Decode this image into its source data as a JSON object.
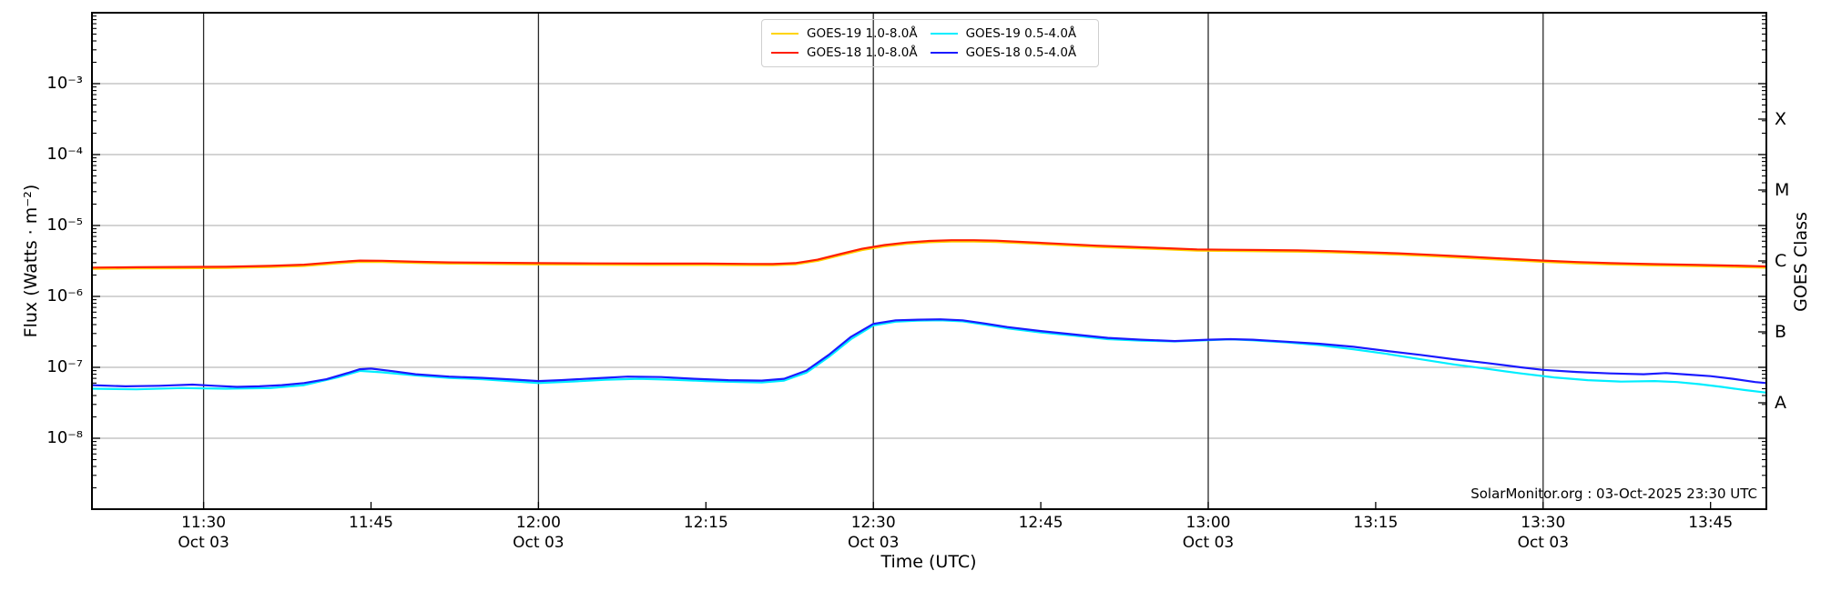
{
  "figure": {
    "xlabel": "Time (UTC)",
    "ylabel": "Flux (Watts · m⁻²)",
    "right_axis_label": "GOES Class",
    "source_text": "SolarMonitor.org : 03-Oct-2025 23:30 UTC"
  },
  "chart_data": {
    "type": "line",
    "title": "",
    "xlabel": "Time (UTC)",
    "ylabel": "Flux (Watts · m⁻²)",
    "x_unit": "minutes_of_day_UTC",
    "xlim": [
      680,
      830
    ],
    "ylim": [
      1e-09,
      0.01
    ],
    "ylim_exp": [
      -9,
      -2
    ],
    "grid": {
      "horizontal": "decades",
      "vertical": "30-min marks"
    },
    "legend_position": "top-center",
    "x_ticks": [
      {
        "t": 690,
        "label": "11:30",
        "date": "Oct 03",
        "grid": true
      },
      {
        "t": 705,
        "label": "11:45",
        "date": "",
        "grid": false
      },
      {
        "t": 720,
        "label": "12:00",
        "date": "Oct 03",
        "grid": true
      },
      {
        "t": 735,
        "label": "12:15",
        "date": "",
        "grid": false
      },
      {
        "t": 750,
        "label": "12:30",
        "date": "Oct 03",
        "grid": true
      },
      {
        "t": 765,
        "label": "12:45",
        "date": "",
        "grid": false
      },
      {
        "t": 780,
        "label": "13:00",
        "date": "Oct 03",
        "grid": true
      },
      {
        "t": 795,
        "label": "13:15",
        "date": "",
        "grid": false
      },
      {
        "t": 810,
        "label": "13:30",
        "date": "Oct 03",
        "grid": true
      },
      {
        "t": 825,
        "label": "13:45",
        "date": "",
        "grid": false
      }
    ],
    "y_ticks": [
      {
        "exp": -3,
        "label": "10⁻³"
      },
      {
        "exp": -4,
        "label": "10⁻⁴"
      },
      {
        "exp": -5,
        "label": "10⁻⁵"
      },
      {
        "exp": -6,
        "label": "10⁻⁶"
      },
      {
        "exp": -7,
        "label": "10⁻⁷"
      },
      {
        "exp": -8,
        "label": "10⁻⁸"
      }
    ],
    "class_ticks": [
      {
        "label": "X",
        "exp": -3.5
      },
      {
        "label": "M",
        "exp": -4.5
      },
      {
        "label": "C",
        "exp": -5.5
      },
      {
        "label": "B",
        "exp": -6.5
      },
      {
        "label": "A",
        "exp": -7.5
      }
    ],
    "legend": [
      {
        "id": "goes19-long",
        "name": "GOES-19 1.0-8.0Å",
        "color": "#ffd400"
      },
      {
        "id": "goes18-long",
        "name": "GOES-18 1.0-8.0Å",
        "color": "#ff1e00"
      },
      {
        "id": "goes19-short",
        "name": "GOES-19 0.5-4.0Å",
        "color": "#00eeff"
      },
      {
        "id": "goes18-short",
        "name": "GOES-18 0.5-4.0Å",
        "color": "#1a1aff"
      }
    ],
    "series": [
      {
        "id": "goes19-long",
        "name": "GOES-19 1.0-8.0Å",
        "color": "#ffd400",
        "points": [
          [
            680,
            2.45e-06
          ],
          [
            684,
            2.48e-06
          ],
          [
            688,
            2.5e-06
          ],
          [
            692,
            2.52e-06
          ],
          [
            696,
            2.6e-06
          ],
          [
            699,
            2.69e-06
          ],
          [
            702,
            2.93e-06
          ],
          [
            704,
            3.07e-06
          ],
          [
            706,
            3.05e-06
          ],
          [
            709,
            2.96e-06
          ],
          [
            712,
            2.9e-06
          ],
          [
            716,
            2.86e-06
          ],
          [
            720,
            2.83e-06
          ],
          [
            725,
            2.8e-06
          ],
          [
            730,
            2.78e-06
          ],
          [
            735,
            2.78e-06
          ],
          [
            739,
            2.76e-06
          ],
          [
            741,
            2.75e-06
          ],
          [
            743,
            2.83e-06
          ],
          [
            745,
            3.17e-06
          ],
          [
            747,
            3.79e-06
          ],
          [
            749,
            4.51e-06
          ],
          [
            751,
            5.09e-06
          ],
          [
            753,
            5.52e-06
          ],
          [
            755,
            5.81e-06
          ],
          [
            757,
            5.95e-06
          ],
          [
            759,
            5.95e-06
          ],
          [
            761,
            5.86e-06
          ],
          [
            764,
            5.57e-06
          ],
          [
            767,
            5.28e-06
          ],
          [
            770,
            4.99e-06
          ],
          [
            773,
            4.8e-06
          ],
          [
            776,
            4.61e-06
          ],
          [
            779,
            4.42e-06
          ],
          [
            782,
            4.37e-06
          ],
          [
            785,
            4.32e-06
          ],
          [
            788,
            4.27e-06
          ],
          [
            791,
            4.18e-06
          ],
          [
            794,
            4.03e-06
          ],
          [
            797,
            3.89e-06
          ],
          [
            800,
            3.7e-06
          ],
          [
            803,
            3.5e-06
          ],
          [
            806,
            3.31e-06
          ],
          [
            810,
            3.07e-06
          ],
          [
            813,
            2.93e-06
          ],
          [
            816,
            2.83e-06
          ],
          [
            820,
            2.74e-06
          ],
          [
            824,
            2.67e-06
          ],
          [
            827,
            2.61e-06
          ],
          [
            830,
            2.54e-06
          ]
        ]
      },
      {
        "id": "goes18-long",
        "name": "GOES-18 1.0-8.0Å",
        "color": "#ff1e00",
        "points": [
          [
            680,
            2.55e-06
          ],
          [
            684,
            2.58e-06
          ],
          [
            688,
            2.6e-06
          ],
          [
            692,
            2.62e-06
          ],
          [
            696,
            2.7e-06
          ],
          [
            699,
            2.8e-06
          ],
          [
            702,
            3.05e-06
          ],
          [
            704,
            3.2e-06
          ],
          [
            706,
            3.18e-06
          ],
          [
            709,
            3.08e-06
          ],
          [
            712,
            3.02e-06
          ],
          [
            716,
            2.98e-06
          ],
          [
            720,
            2.95e-06
          ],
          [
            725,
            2.92e-06
          ],
          [
            730,
            2.9e-06
          ],
          [
            735,
            2.9e-06
          ],
          [
            739,
            2.87e-06
          ],
          [
            741,
            2.86e-06
          ],
          [
            743,
            2.95e-06
          ],
          [
            745,
            3.3e-06
          ],
          [
            747,
            3.95e-06
          ],
          [
            749,
            4.7e-06
          ],
          [
            751,
            5.3e-06
          ],
          [
            753,
            5.75e-06
          ],
          [
            755,
            6.05e-06
          ],
          [
            757,
            6.2e-06
          ],
          [
            759,
            6.2e-06
          ],
          [
            761,
            6.1e-06
          ],
          [
            764,
            5.8e-06
          ],
          [
            767,
            5.5e-06
          ],
          [
            770,
            5.2e-06
          ],
          [
            773,
            5e-06
          ],
          [
            776,
            4.8e-06
          ],
          [
            779,
            4.6e-06
          ],
          [
            782,
            4.55e-06
          ],
          [
            785,
            4.5e-06
          ],
          [
            788,
            4.45e-06
          ],
          [
            791,
            4.35e-06
          ],
          [
            794,
            4.2e-06
          ],
          [
            797,
            4.05e-06
          ],
          [
            800,
            3.85e-06
          ],
          [
            803,
            3.65e-06
          ],
          [
            806,
            3.45e-06
          ],
          [
            810,
            3.2e-06
          ],
          [
            813,
            3.05e-06
          ],
          [
            816,
            2.95e-06
          ],
          [
            820,
            2.85e-06
          ],
          [
            824,
            2.78e-06
          ],
          [
            827,
            2.72e-06
          ],
          [
            830,
            2.65e-06
          ]
        ]
      },
      {
        "id": "goes19-short",
        "name": "GOES-19 0.5-4.0Å",
        "color": "#00eeff",
        "points": [
          [
            680,
            5e-08
          ],
          [
            684,
            4.9e-08
          ],
          [
            688,
            5.1e-08
          ],
          [
            692,
            5e-08
          ],
          [
            696,
            5.1e-08
          ],
          [
            699,
            5.6e-08
          ],
          [
            702,
            7.2e-08
          ],
          [
            704,
            8.9e-08
          ],
          [
            706,
            8.5e-08
          ],
          [
            709,
            7.7e-08
          ],
          [
            712,
            7.1e-08
          ],
          [
            715,
            6.8e-08
          ],
          [
            718,
            6.3e-08
          ],
          [
            720,
            6e-08
          ],
          [
            723,
            6.3e-08
          ],
          [
            726,
            6.7e-08
          ],
          [
            729,
            6.9e-08
          ],
          [
            732,
            6.7e-08
          ],
          [
            735,
            6.4e-08
          ],
          [
            738,
            6.2e-08
          ],
          [
            740,
            6.1e-08
          ],
          [
            742,
            6.5e-08
          ],
          [
            744,
            8.4e-08
          ],
          [
            746,
            1.4e-07
          ],
          [
            748,
            2.5e-07
          ],
          [
            750,
            3.9e-07
          ],
          [
            752,
            4.4e-07
          ],
          [
            754,
            4.55e-07
          ],
          [
            756,
            4.6e-07
          ],
          [
            758,
            4.45e-07
          ],
          [
            760,
            4e-07
          ],
          [
            762,
            3.55e-07
          ],
          [
            765,
            3.1e-07
          ],
          [
            768,
            2.8e-07
          ],
          [
            771,
            2.5e-07
          ],
          [
            774,
            2.38e-07
          ],
          [
            777,
            2.32e-07
          ],
          [
            780,
            2.42e-07
          ],
          [
            782,
            2.48e-07
          ],
          [
            784,
            2.4e-07
          ],
          [
            787,
            2.25e-07
          ],
          [
            790,
            2.05e-07
          ],
          [
            793,
            1.8e-07
          ],
          [
            796,
            1.55e-07
          ],
          [
            799,
            1.3e-07
          ],
          [
            802,
            1.1e-07
          ],
          [
            805,
            9.5e-08
          ],
          [
            808,
            8.2e-08
          ],
          [
            811,
            7.2e-08
          ],
          [
            814,
            6.6e-08
          ],
          [
            817,
            6.3e-08
          ],
          [
            820,
            6.4e-08
          ],
          [
            822,
            6.2e-08
          ],
          [
            824,
            5.8e-08
          ],
          [
            826,
            5.3e-08
          ],
          [
            828,
            4.8e-08
          ],
          [
            830,
            4.4e-08
          ]
        ]
      },
      {
        "id": "goes18-short",
        "name": "GOES-18 0.5-4.0Å",
        "color": "#1a1aff",
        "points": [
          [
            680,
            5.6e-08
          ],
          [
            683,
            5.4e-08
          ],
          [
            686,
            5.5e-08
          ],
          [
            689,
            5.7e-08
          ],
          [
            691,
            5.5e-08
          ],
          [
            693,
            5.3e-08
          ],
          [
            695,
            5.4e-08
          ],
          [
            697,
            5.6e-08
          ],
          [
            699,
            6e-08
          ],
          [
            701,
            6.8e-08
          ],
          [
            703,
            8.4e-08
          ],
          [
            704,
            9.4e-08
          ],
          [
            705,
            9.6e-08
          ],
          [
            707,
            8.8e-08
          ],
          [
            709,
            8e-08
          ],
          [
            712,
            7.4e-08
          ],
          [
            715,
            7.1e-08
          ],
          [
            718,
            6.7e-08
          ],
          [
            720,
            6.4e-08
          ],
          [
            722,
            6.6e-08
          ],
          [
            725,
            7e-08
          ],
          [
            728,
            7.4e-08
          ],
          [
            731,
            7.3e-08
          ],
          [
            734,
            6.9e-08
          ],
          [
            737,
            6.6e-08
          ],
          [
            740,
            6.5e-08
          ],
          [
            742,
            6.9e-08
          ],
          [
            744,
            9e-08
          ],
          [
            746,
            1.5e-07
          ],
          [
            748,
            2.7e-07
          ],
          [
            750,
            4.1e-07
          ],
          [
            752,
            4.6e-07
          ],
          [
            754,
            4.7e-07
          ],
          [
            756,
            4.75e-07
          ],
          [
            758,
            4.6e-07
          ],
          [
            760,
            4.15e-07
          ],
          [
            762,
            3.7e-07
          ],
          [
            765,
            3.25e-07
          ],
          [
            768,
            2.9e-07
          ],
          [
            771,
            2.6e-07
          ],
          [
            774,
            2.45e-07
          ],
          [
            777,
            2.35e-07
          ],
          [
            780,
            2.45e-07
          ],
          [
            782,
            2.5e-07
          ],
          [
            784,
            2.45e-07
          ],
          [
            787,
            2.3e-07
          ],
          [
            790,
            2.15e-07
          ],
          [
            793,
            1.95e-07
          ],
          [
            796,
            1.7e-07
          ],
          [
            799,
            1.5e-07
          ],
          [
            802,
            1.3e-07
          ],
          [
            805,
            1.15e-07
          ],
          [
            808,
            1e-07
          ],
          [
            810,
            9.2e-08
          ],
          [
            813,
            8.6e-08
          ],
          [
            816,
            8.2e-08
          ],
          [
            819,
            8e-08
          ],
          [
            821,
            8.3e-08
          ],
          [
            823,
            7.9e-08
          ],
          [
            825,
            7.5e-08
          ],
          [
            827,
            6.9e-08
          ],
          [
            829,
            6.2e-08
          ],
          [
            830,
            6e-08
          ]
        ]
      }
    ],
    "colors": {
      "frame": "#000000",
      "h_grid": "#bbbbbb",
      "v_grid": "#2a2a2a"
    }
  }
}
